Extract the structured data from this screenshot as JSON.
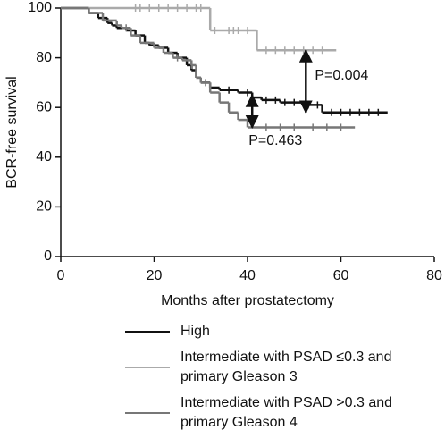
{
  "chart_data": {
    "type": "step",
    "y_label": "BCR-free survival",
    "x_label": "Months after prostatectomy",
    "xlim": [
      0,
      80
    ],
    "xticks": [
      0,
      20,
      40,
      60,
      80
    ],
    "ylim": [
      0,
      100
    ],
    "yticks": [
      0,
      20,
      40,
      60,
      80,
      100
    ],
    "series": [
      {
        "name": "High",
        "color": "#111111",
        "x": [
          0,
          6,
          8,
          10,
          11,
          12,
          14,
          16,
          18,
          19,
          21,
          23,
          25,
          27,
          28,
          29,
          30,
          32,
          34,
          38,
          41,
          43,
          47,
          52,
          56,
          70
        ],
        "values": [
          100,
          98,
          96,
          94,
          93,
          92,
          91,
          89,
          86,
          85,
          84,
          82,
          80,
          77,
          75,
          72,
          70,
          68,
          67,
          66,
          64,
          63,
          62,
          61,
          58,
          58
        ],
        "censor_x": [
          36,
          40,
          44,
          46,
          48,
          50,
          53,
          55,
          58,
          60,
          62,
          64,
          66,
          68
        ]
      },
      {
        "name": "Intermediate with PSAD ≤0.3 and primary Gleason 3",
        "color": "#aaaaaa",
        "x": [
          0,
          32,
          42,
          59
        ],
        "values": [
          100,
          91,
          83,
          83
        ],
        "censor_x": [
          16,
          17,
          19,
          21,
          23,
          25,
          27,
          29,
          30,
          33,
          36,
          37,
          38,
          40,
          44,
          46,
          48,
          50,
          52,
          54,
          56
        ]
      },
      {
        "name": "Intermediate with PSAD >0.3 and primary Gleason 4",
        "color": "#777777",
        "x": [
          0,
          6,
          9,
          12,
          13,
          15,
          17,
          20,
          22,
          24,
          26,
          28,
          29,
          30,
          32,
          34,
          36,
          38,
          40,
          63
        ],
        "values": [
          100,
          98,
          95,
          93,
          92,
          89,
          86,
          84,
          82,
          80,
          79,
          77,
          72,
          70,
          66,
          62,
          58,
          55,
          52,
          52
        ],
        "censor_x": [
          14,
          25,
          28,
          31,
          44,
          47,
          50,
          54,
          57,
          60
        ]
      }
    ],
    "annotations": [
      {
        "text": "P=0.004",
        "x": 52.5,
        "from": 83,
        "to": 58
      },
      {
        "text": "P=0.463",
        "x": 41,
        "from": 65,
        "to": 52
      }
    ]
  }
}
